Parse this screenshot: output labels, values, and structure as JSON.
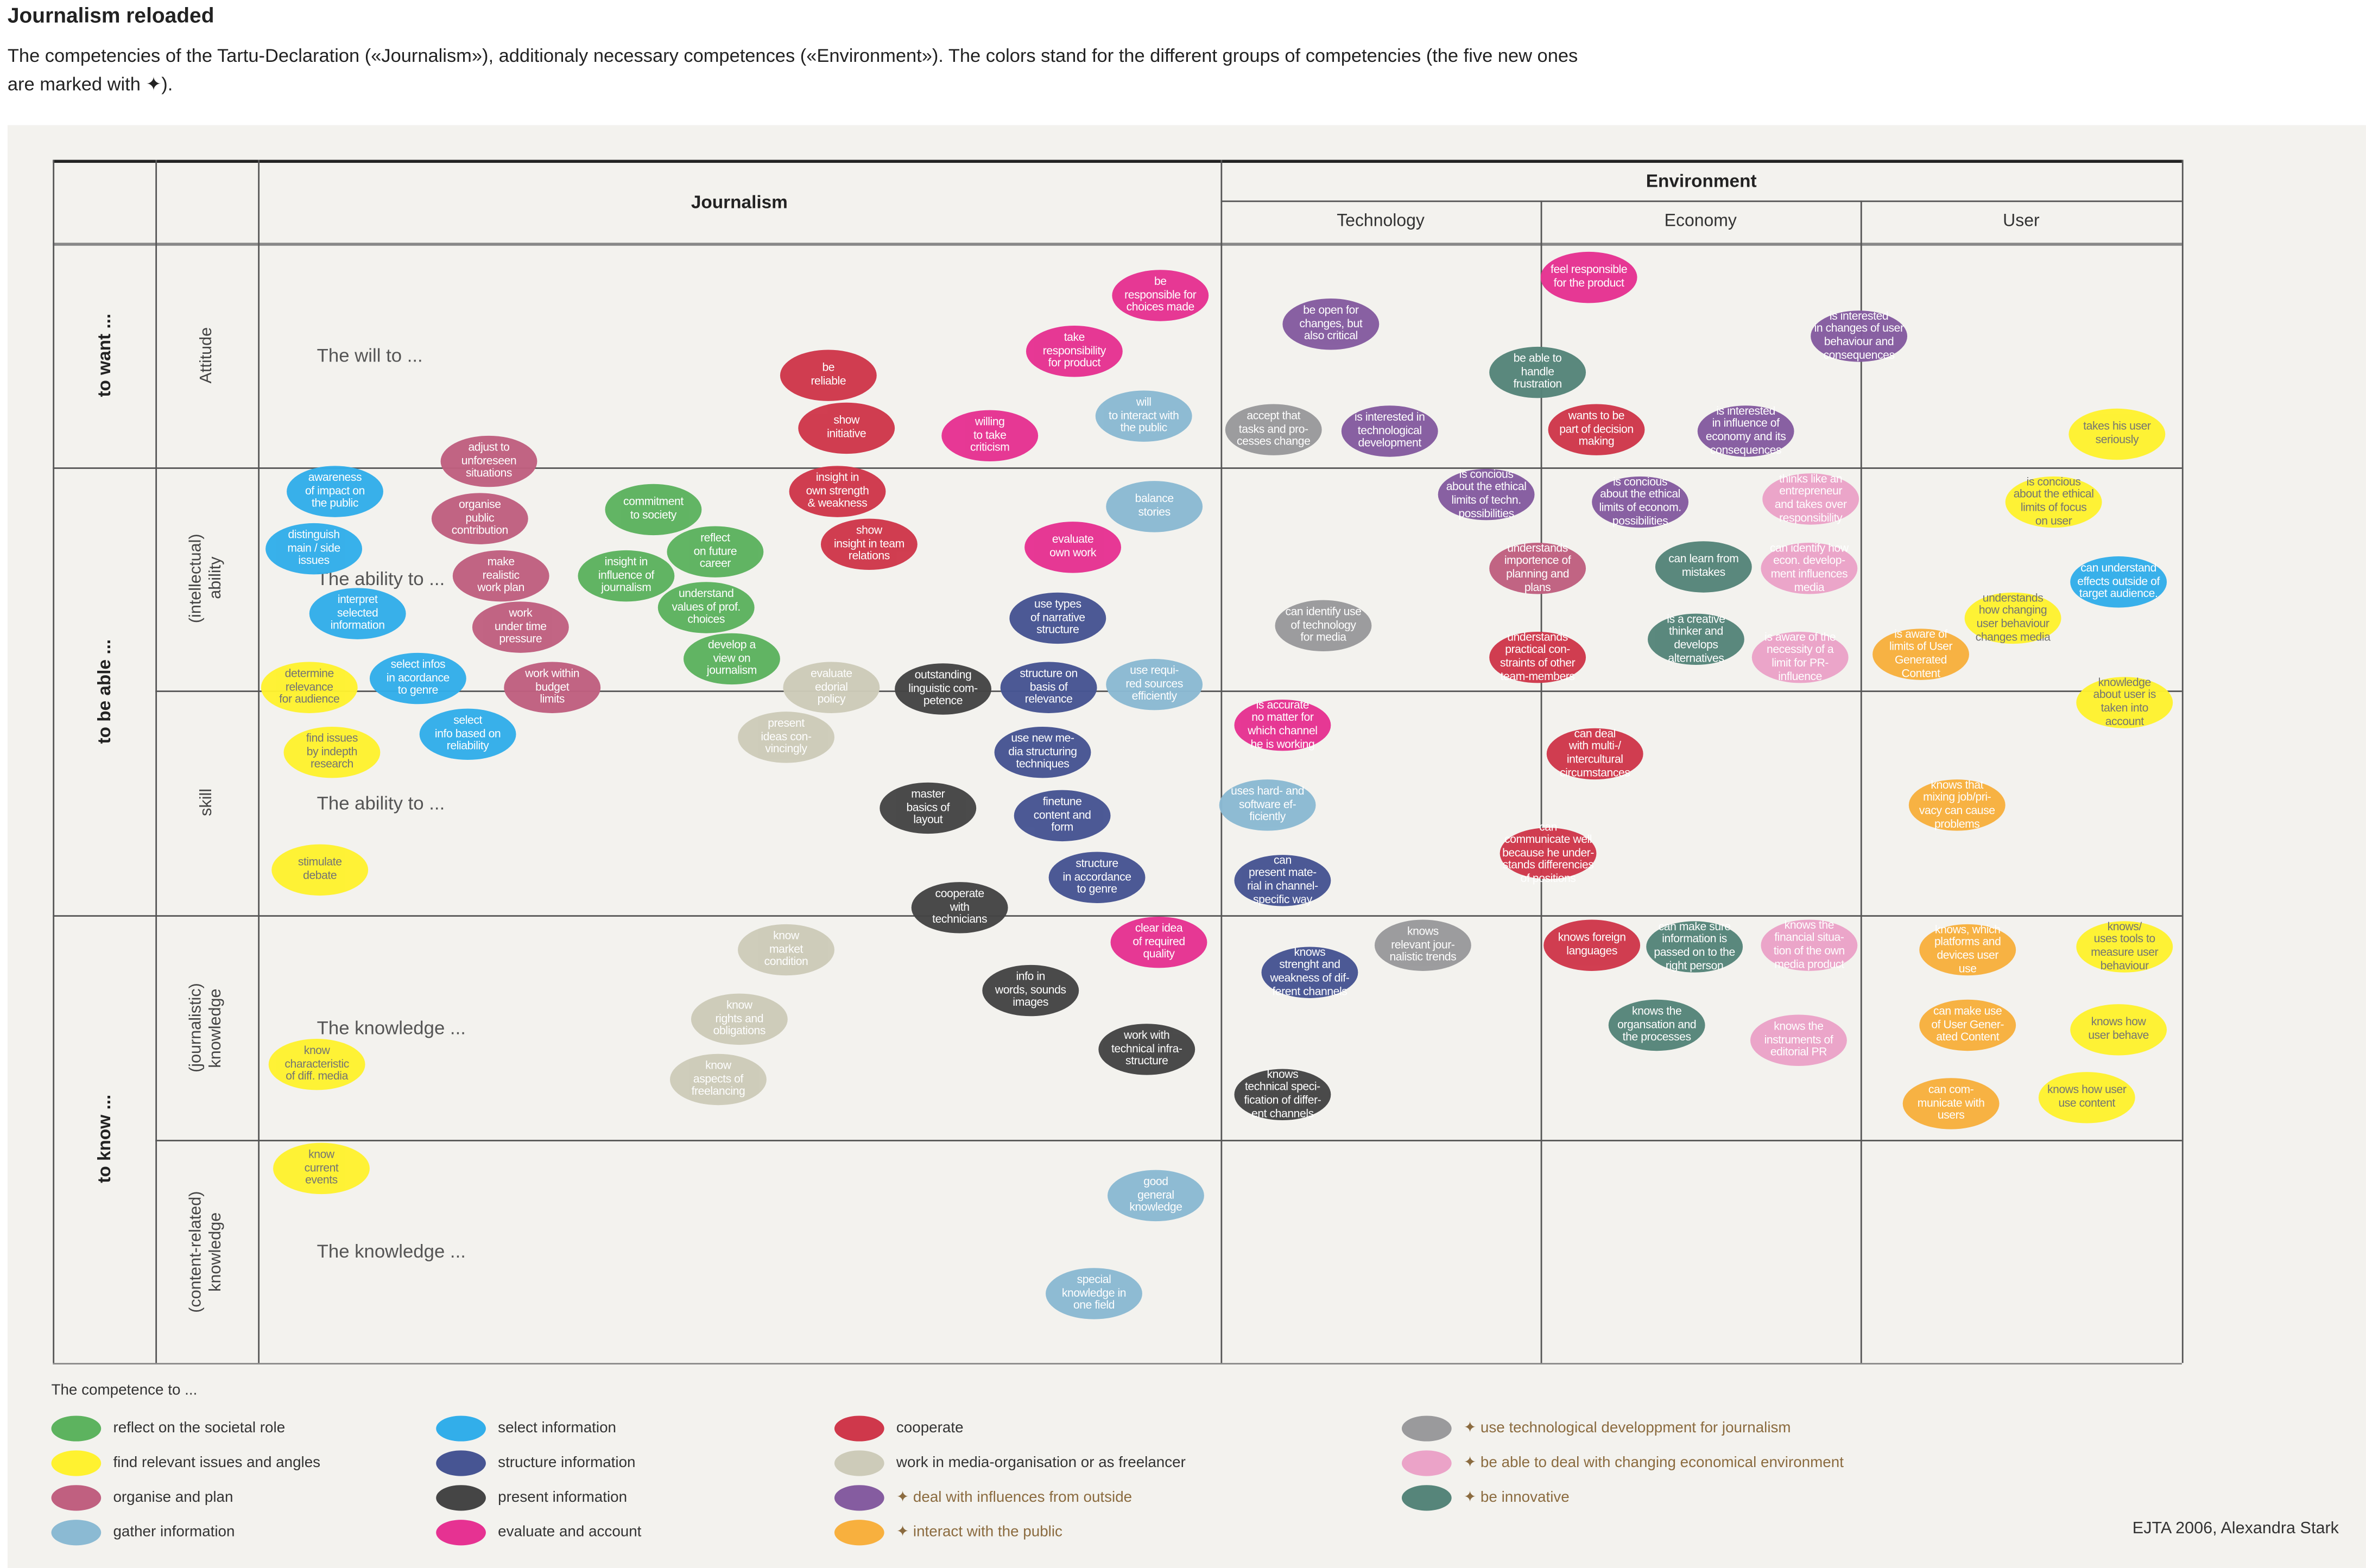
{
  "title": "Journalism reloaded",
  "subtitle": "The competencies of the Tartu-Declaration («Journalism»), additionaly necessary competences («Environment»). The colors stand for the different groups of competencies (the five new ones are marked with ✦).",
  "grid": {
    "columns": {
      "journalism": "Journalism",
      "environment": "Environment",
      "technology": "Technology",
      "economy": "Economy",
      "user": "User"
    },
    "dimensions": {
      "want": "to want ...",
      "able": "to be able ...",
      "know": "to know ..."
    },
    "rows": {
      "attitude": "Attitude",
      "ability": "(intellectual)\nability",
      "skill": "skill",
      "jknowledge": "(journalistic)\nknowledge",
      "cknowledge": "(content-related)\nknowledge"
    },
    "row_labels": {
      "will": "The will to ...",
      "ability1": "The ability to ...",
      "ability2": "The ability to ...",
      "knowledge1": "The knowledge ...",
      "knowledge2": "The knowledge ..."
    }
  },
  "groups": {
    "reflect": {
      "label": "reflect on the societal role",
      "color": "#5db35f",
      "new": false
    },
    "find": {
      "label": "find relevant issues and angles",
      "color": "#fff230",
      "new": false
    },
    "organise": {
      "label": "organise and plan",
      "color": "#c06080",
      "new": false
    },
    "gather": {
      "label": "gather information",
      "color": "#8bbad3",
      "new": false
    },
    "select": {
      "label": "select information",
      "color": "#32aeea",
      "new": false
    },
    "structure": {
      "label": "structure information",
      "color": "#475593",
      "new": false
    },
    "present": {
      "label": "present information",
      "color": "#454545",
      "new": false
    },
    "evaluate": {
      "label": "evaluate and account",
      "color": "#e63292",
      "new": false
    },
    "cooperate": {
      "label": "cooperate",
      "color": "#cf384b",
      "new": false
    },
    "work": {
      "label": "work in media-organisation or as freelancer",
      "color": "#cdcbb9",
      "new": false
    },
    "influences": {
      "label": "✦ deal with influences from outside",
      "color": "#855ca0",
      "new": true
    },
    "public": {
      "label": "✦ interact with the public",
      "color": "#f8b03e",
      "new": true
    },
    "technology": {
      "label": "✦ use technological developpment for journalism",
      "color": "#9a9a9c",
      "new": true
    },
    "economy": {
      "label": "✦ be able to deal with changing economical environment",
      "color": "#eba3c8",
      "new": true
    },
    "innovative": {
      "label": "✦ be innovative",
      "color": "#56857a",
      "new": true
    }
  },
  "legend_title": "The competence to ...",
  "credit": "EJTA 2006, Alexandra Stark",
  "bubbles": [
    {
      "text": "adjust to\nunforeseen\nsituations",
      "group": "organise"
    },
    {
      "text": "awareness\nof impact on\nthe public",
      "group": "select"
    },
    {
      "text": "organise\npublic\ncontribution",
      "group": "organise"
    },
    {
      "text": "distinguish\nmain / side\nissues",
      "group": "select"
    },
    {
      "text": "commitment\nto society",
      "group": "reflect"
    },
    {
      "text": "reflect\non future\ncareer",
      "group": "reflect"
    },
    {
      "text": "insight in\ninfluence of\njournalism",
      "group": "reflect"
    },
    {
      "text": "make\nrealistic\nwork plan",
      "group": "organise"
    },
    {
      "text": "interpret\nselected\ninformation",
      "group": "select"
    },
    {
      "text": "understand\nvalues of prof.\nchoices",
      "group": "reflect"
    },
    {
      "text": "work\nunder time\npressure",
      "group": "organise"
    },
    {
      "text": "develop a\nview on\njournalism",
      "group": "reflect"
    },
    {
      "text": "determine\nrelevance\nfor audience",
      "group": "find"
    },
    {
      "text": "select infos\nin acordance\nto genre",
      "group": "select"
    },
    {
      "text": "work within\nbudget\nlimits",
      "group": "organise"
    },
    {
      "text": "select\ninfo based on\nreliability",
      "group": "select"
    },
    {
      "text": "find issues\nby indepth\nresearch",
      "group": "find"
    },
    {
      "text": "stimulate\ndebate",
      "group": "find"
    },
    {
      "text": "know\ncharacteristic\nof diff. media",
      "group": "find"
    },
    {
      "text": "know\ncurrent\nevents",
      "group": "find"
    },
    {
      "text": "be\nreliable",
      "group": "cooperate"
    },
    {
      "text": "show\ninitiative",
      "group": "cooperate"
    },
    {
      "text": "insight in\nown strength\n& weakness",
      "group": "cooperate"
    },
    {
      "text": "show\ninsight in team\nrelations",
      "group": "cooperate"
    },
    {
      "text": "willing\nto take\ncriticism",
      "group": "evaluate"
    },
    {
      "text": "take\nresponsibility\nfor product",
      "group": "evaluate"
    },
    {
      "text": "be\nresponsible for\nchoices made",
      "group": "evaluate"
    },
    {
      "text": "will\nto interact with\nthe public",
      "group": "gather"
    },
    {
      "text": "balance\nstories",
      "group": "gather"
    },
    {
      "text": "evaluate\nown work",
      "group": "evaluate"
    },
    {
      "text": "use types\nof narrative\nstructure",
      "group": "structure"
    },
    {
      "text": "evaluate\nedorial\npolicy",
      "group": "work"
    },
    {
      "text": "outstanding\nlinguistic com-\npetence",
      "group": "present"
    },
    {
      "text": "structure on\nbasis of\nrelevance",
      "group": "structure"
    },
    {
      "text": "use requi-\nred sources\nefficiently",
      "group": "gather"
    },
    {
      "text": "present\nideas con-\nvincingly",
      "group": "work"
    },
    {
      "text": "use new me-\ndia structuring\ntechniques",
      "group": "structure"
    },
    {
      "text": "master\nbasics of\nlayout",
      "group": "present"
    },
    {
      "text": "finetune\ncontent and\nform",
      "group": "structure"
    },
    {
      "text": "structure\nin accordance\nto genre",
      "group": "structure"
    },
    {
      "text": "cooperate\nwith\ntechnicians",
      "group": "present"
    },
    {
      "text": "know\nmarket\ncondition",
      "group": "work"
    },
    {
      "text": "clear idea\nof required\nquality",
      "group": "evaluate"
    },
    {
      "text": "info in\nwords, sounds\nimages",
      "group": "present"
    },
    {
      "text": "know\nrights and\nobligations",
      "group": "work"
    },
    {
      "text": "know\naspects of\nfreelancing",
      "group": "work"
    },
    {
      "text": "work with\ntechnical infra-\nstructure",
      "group": "present"
    },
    {
      "text": "good\ngeneral\nknowledge",
      "group": "gather"
    },
    {
      "text": "special\nknowledge in\none field",
      "group": "gather"
    },
    {
      "text": "be open for\nchanges, but\nalso critical",
      "group": "influences"
    },
    {
      "text": "accept that\ntasks and pro-\ncesses change",
      "group": "technology"
    },
    {
      "text": "is interested in\ntechnological\ndevelopment",
      "group": "influences"
    },
    {
      "text": "is concious\nabout the ethical\nlimits of techn.\npossibilities",
      "group": "influences"
    },
    {
      "text": "can identify use\nof technology\nfor media",
      "group": "technology"
    },
    {
      "text": "is accurate\nno matter for\nwhich channel\nhe is working",
      "group": "evaluate"
    },
    {
      "text": "uses hard- and\nsoftware ef-\nficiently",
      "group": "gather"
    },
    {
      "text": "can\npresent mate-\nrial in channel-\nspecific way",
      "group": "structure"
    },
    {
      "text": "knows\nrelevant jour-\nnalistic trends",
      "group": "technology"
    },
    {
      "text": "knows\nstrenght and\nweakness of dif-\nferent channels",
      "group": "structure"
    },
    {
      "text": "knows\ntechnical speci-\nfication of differ-\nent channels",
      "group": "present"
    },
    {
      "text": "feel responsible\nfor the product",
      "group": "evaluate"
    },
    {
      "text": "be able to\nhandle\nfrustration",
      "group": "innovative"
    },
    {
      "text": "wants to be\npart of decision\nmaking",
      "group": "cooperate"
    },
    {
      "text": "is interested\nin influence of\neconomy and its\nconsequences",
      "group": "influences"
    },
    {
      "text": "is concious\nabout the ethical\nlimits of econom.\npossibilities",
      "group": "influences"
    },
    {
      "text": "understands\nimportence of\nplanning and\nplans",
      "group": "organise"
    },
    {
      "text": "can learn from\nmistakes",
      "group": "innovative"
    },
    {
      "text": "is a creative\nthinker and\ndevelops\nalternatives",
      "group": "innovative"
    },
    {
      "text": "understands\npractical con-\nstraints of other\nteam-members",
      "group": "cooperate"
    },
    {
      "text": "can deal\nwith multi-/\nintercultural\ncircumstances",
      "group": "cooperate"
    },
    {
      "text": "can\ncommunicate well\nbecause he under-\nstands differencies\nof positions",
      "group": "cooperate"
    },
    {
      "text": "knows foreign\nlanguages",
      "group": "cooperate"
    },
    {
      "text": "can make sure\ninformation is\npassed on to the\nright person",
      "group": "innovative"
    },
    {
      "text": "knows the\norgansation and\nthe processes",
      "group": "innovative"
    },
    {
      "text": "thinks like an\nentrepreneur\nand takes over\nresponsibility",
      "group": "economy"
    },
    {
      "text": "can identify how\necon. develop-\nment influences\nmedia",
      "group": "economy"
    },
    {
      "text": "is aware of the\nnecessity of a\nlimit for PR-\ninfluence",
      "group": "economy"
    },
    {
      "text": "knows the\nfinancial situa-\ntion of the own\nmedia product",
      "group": "economy"
    },
    {
      "text": "knows the\ninstruments of\neditorial PR",
      "group": "economy"
    },
    {
      "text": "is interested\nin changes of user\nbehaviour and\nconsequences",
      "group": "influences"
    },
    {
      "text": "takes his user\nseriously",
      "group": "find"
    },
    {
      "text": "is concious\nabout the ethical\nlimits of focus\non user",
      "group": "find"
    },
    {
      "text": "can understand\neffects outside of\ntarget audience.",
      "group": "select"
    },
    {
      "text": "understands\nhow changing\nuser behaviour\nchanges media",
      "group": "find"
    },
    {
      "text": "is aware of\nlimits of User\nGenerated\nContent",
      "group": "public"
    },
    {
      "text": "knowledge\nabout user is\ntaken into\naccount",
      "group": "find"
    },
    {
      "text": "knows that\nmixing job/pri-\nvacy can cause\nproblems",
      "group": "public"
    },
    {
      "text": "knows, which\nplatforms and\ndevices user\nuse",
      "group": "public"
    },
    {
      "text": "knows/\nuses tools to\nmeasure user\nbehaviour",
      "group": "find"
    },
    {
      "text": "can make use\nof User Gener-\nated Content",
      "group": "public"
    },
    {
      "text": "knows how\nuser behave",
      "group": "find"
    },
    {
      "text": "can com-\nmunicate with\nusers",
      "group": "public"
    },
    {
      "text": "knows how user\nuse content",
      "group": "find"
    }
  ]
}
